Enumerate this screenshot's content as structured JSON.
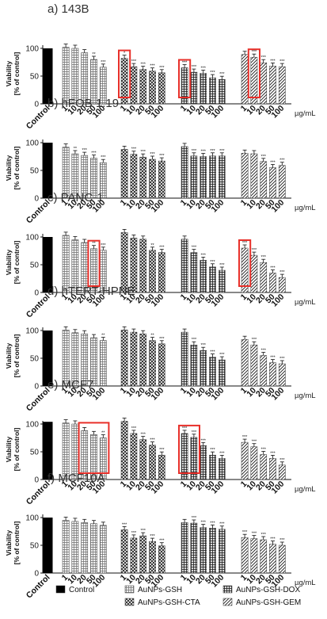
{
  "chart_data": [
    {
      "type": "bar",
      "panel_label": "a) 143B",
      "ylabel_lines": [
        "Viability",
        "[% of control]"
      ],
      "ylim": [
        0,
        100
      ],
      "yticks": [
        0,
        50,
        100
      ],
      "x_unit": "µg/mL",
      "control": {
        "label": "Control",
        "value": 100,
        "stars": ""
      },
      "groups": [
        {
          "name": "AuNPs-GSH",
          "x": [
            "1",
            "10",
            "20",
            "50",
            "100"
          ],
          "values": [
            102,
            100,
            92,
            80,
            66
          ],
          "stars": [
            "",
            "",
            "",
            "**",
            "***"
          ]
        },
        {
          "name": "AuNPs-GSH-CTA",
          "x": [
            "1",
            "10",
            "20",
            "50",
            "100"
          ],
          "values": [
            82,
            67,
            62,
            59,
            56
          ],
          "stars": [
            "*",
            "***",
            "***",
            "***",
            "***"
          ]
        },
        {
          "name": "AuNPs-GSH-DOX",
          "x": [
            "1",
            "10",
            "20",
            "50",
            "100"
          ],
          "values": [
            65,
            57,
            55,
            47,
            44
          ],
          "stars": [
            "***",
            "***",
            "***",
            "***",
            "***"
          ]
        },
        {
          "name": "AuNPs-GSH-GEM",
          "x": [
            "1",
            "10",
            "20",
            "50",
            "100"
          ],
          "values": [
            89,
            84,
            74,
            68,
            67
          ],
          "stars": [
            "",
            "***",
            "***",
            "***",
            "***"
          ]
        }
      ]
    },
    {
      "type": "bar",
      "panel_label": "b) hFOB 1.19",
      "ylabel_lines": [
        "Viability",
        "[% of control]"
      ],
      "ylim": [
        0,
        100
      ],
      "yticks": [
        0,
        50,
        100
      ],
      "x_unit": "µg/mL",
      "control": {
        "label": "Control",
        "value": 100,
        "stars": ""
      },
      "groups": [
        {
          "name": "AuNPs-GSH",
          "x": [
            "1",
            "10",
            "20",
            "50",
            "100"
          ],
          "values": [
            92,
            80,
            77,
            72,
            64
          ],
          "stars": [
            "",
            "**",
            "***",
            "***",
            "***"
          ]
        },
        {
          "name": "AuNPs-GSH-CTA",
          "x": [
            "1",
            "10",
            "20",
            "50",
            "100"
          ],
          "values": [
            88,
            79,
            74,
            70,
            67
          ],
          "stars": [
            "",
            "***",
            "***",
            "***",
            "***"
          ]
        },
        {
          "name": "AuNPs-GSH-DOX",
          "x": [
            "1",
            "10",
            "20",
            "50",
            "100"
          ],
          "values": [
            93,
            76,
            75,
            76,
            76
          ],
          "stars": [
            "",
            "***",
            "***",
            "***",
            "***"
          ]
        },
        {
          "name": "AuNPs-GSH-GEM",
          "x": [
            "1",
            "10",
            "20",
            "50",
            "100"
          ],
          "values": [
            81,
            80,
            66,
            55,
            59
          ],
          "stars": [
            "",
            "",
            "***",
            "***",
            "***"
          ]
        }
      ]
    },
    {
      "type": "bar",
      "panel_label": "c) PANC-1",
      "ylabel_lines": [
        "Viability",
        "[% of control]"
      ],
      "ylim": [
        0,
        100
      ],
      "yticks": [
        0,
        50,
        100
      ],
      "x_unit": "µg/mL",
      "control": {
        "label": "Control",
        "value": 100,
        "stars": ""
      },
      "groups": [
        {
          "name": "AuNPs-GSH",
          "x": [
            "1",
            "10",
            "20",
            "50",
            "100"
          ],
          "values": [
            103,
            95,
            90,
            79,
            76
          ],
          "stars": [
            "",
            "",
            "",
            "**",
            "***"
          ]
        },
        {
          "name": "AuNPs-GSH-CTA",
          "x": [
            "1",
            "10",
            "20",
            "50",
            "100"
          ],
          "values": [
            108,
            98,
            96,
            76,
            72
          ],
          "stars": [
            "",
            "",
            "",
            "**",
            "***"
          ]
        },
        {
          "name": "AuNPs-GSH-DOX",
          "x": [
            "1",
            "10",
            "20",
            "50",
            "100"
          ],
          "values": [
            96,
            72,
            58,
            46,
            40
          ],
          "stars": [
            "",
            "***",
            "***",
            "***",
            "***"
          ]
        },
        {
          "name": "AuNPs-GSH-GEM",
          "x": [
            "1",
            "10",
            "20",
            "50",
            "100"
          ],
          "values": [
            80,
            67,
            54,
            35,
            27
          ],
          "stars": [
            "***",
            "***",
            "***",
            "***",
            "***"
          ]
        }
      ]
    },
    {
      "type": "bar",
      "panel_label": "d) hTERT-HPNE",
      "ylabel_lines": [
        "Viability",
        "[% of control]"
      ],
      "ylim": [
        0,
        100
      ],
      "yticks": [
        0,
        50,
        100
      ],
      "x_unit": "µg/mL",
      "control": {
        "label": "Control",
        "value": 100,
        "stars": ""
      },
      "groups": [
        {
          "name": "AuNPs-GSH",
          "x": [
            "1",
            "10",
            "20",
            "50",
            "100"
          ],
          "values": [
            101,
            96,
            94,
            87,
            82
          ],
          "stars": [
            "",
            "",
            "",
            "",
            "**"
          ]
        },
        {
          "name": "AuNPs-GSH-CTA",
          "x": [
            "1",
            "10",
            "20",
            "50",
            "100"
          ],
          "values": [
            101,
            97,
            94,
            82,
            76
          ],
          "stars": [
            "",
            "",
            "",
            "**",
            "***"
          ]
        },
        {
          "name": "AuNPs-GSH-DOX",
          "x": [
            "1",
            "10",
            "20",
            "50",
            "100"
          ],
          "values": [
            97,
            74,
            64,
            52,
            47
          ],
          "stars": [
            "",
            "***",
            "***",
            "***",
            "***"
          ]
        },
        {
          "name": "AuNPs-GSH-GEM",
          "x": [
            "1",
            "10",
            "20",
            "50",
            "100"
          ],
          "values": [
            84,
            74,
            55,
            42,
            40
          ],
          "stars": [
            "",
            "***",
            "***",
            "***",
            "***"
          ]
        }
      ]
    },
    {
      "type": "bar",
      "panel_label": "e) MCF7",
      "ylabel_lines": [
        "Viability",
        "[% of control]"
      ],
      "ylim": [
        0,
        100
      ],
      "yticks": [
        0,
        50,
        100
      ],
      "x_unit": "µg/mL",
      "control": {
        "label": "Control",
        "value": 104,
        "stars": ""
      },
      "groups": [
        {
          "name": "AuNPs-GSH",
          "x": [
            "1",
            "10",
            "20",
            "50",
            "100"
          ],
          "values": [
            102,
            100,
            88,
            81,
            75
          ],
          "stars": [
            "",
            "",
            "",
            "",
            "**"
          ]
        },
        {
          "name": "AuNPs-GSH-CTA",
          "x": [
            "1",
            "10",
            "20",
            "50",
            "100"
          ],
          "values": [
            105,
            83,
            72,
            62,
            44
          ],
          "stars": [
            "",
            "***",
            "***",
            "***",
            "***"
          ]
        },
        {
          "name": "AuNPs-GSH-DOX",
          "x": [
            "1",
            "10",
            "20",
            "50",
            "100"
          ],
          "values": [
            83,
            76,
            61,
            44,
            38
          ],
          "stars": [
            "***",
            "***",
            "***",
            "***",
            "***"
          ]
        },
        {
          "name": "AuNPs-GSH-GEM",
          "x": [
            "1",
            "10",
            "20",
            "50",
            "100"
          ],
          "values": [
            67,
            59,
            45,
            38,
            26
          ],
          "stars": [
            "***",
            "***",
            "***",
            "***",
            "***"
          ]
        }
      ]
    },
    {
      "type": "bar",
      "panel_label": "f) MCF10A",
      "ylabel_lines": [
        "Viability",
        "[% of control]"
      ],
      "ylim": [
        0,
        100
      ],
      "yticks": [
        0,
        50,
        100
      ],
      "x_unit": "µg/mL",
      "control": {
        "label": "Control",
        "value": 100,
        "stars": ""
      },
      "groups": [
        {
          "name": "AuNPs-GSH",
          "x": [
            "1",
            "10",
            "20",
            "50",
            "100"
          ],
          "values": [
            95,
            93,
            91,
            89,
            86
          ],
          "stars": [
            "",
            "",
            "",
            "",
            ""
          ]
        },
        {
          "name": "AuNPs-GSH-CTA",
          "x": [
            "1",
            "10",
            "20",
            "50",
            "100"
          ],
          "values": [
            78,
            63,
            67,
            57,
            49
          ],
          "stars": [
            "***",
            "***",
            "***",
            "***",
            "***"
          ]
        },
        {
          "name": "AuNPs-GSH-DOX",
          "x": [
            "1",
            "10",
            "20",
            "50",
            "100"
          ],
          "values": [
            91,
            90,
            82,
            81,
            79
          ],
          "stars": [
            "",
            "***",
            "***",
            "***",
            "***"
          ]
        },
        {
          "name": "AuNPs-GSH-GEM",
          "x": [
            "1",
            "10",
            "20",
            "50",
            "100"
          ],
          "values": [
            64,
            62,
            60,
            52,
            50
          ],
          "stars": [
            "***",
            "***",
            "***",
            "***",
            "***"
          ]
        }
      ]
    }
  ],
  "legend": {
    "items": [
      {
        "label": "Control",
        "pattern": "solid"
      },
      {
        "label": "AuNPs-GSH",
        "pattern": "grid"
      },
      {
        "label": "AuNPs-GSH-DOX",
        "pattern": "hatch-grid"
      },
      {
        "label": "AuNPs-GSH-CTA",
        "pattern": "crosshatch"
      },
      {
        "label": "AuNPs-GSH-GEM",
        "pattern": "diagonal"
      }
    ]
  },
  "highlight_color": "#e8302a"
}
